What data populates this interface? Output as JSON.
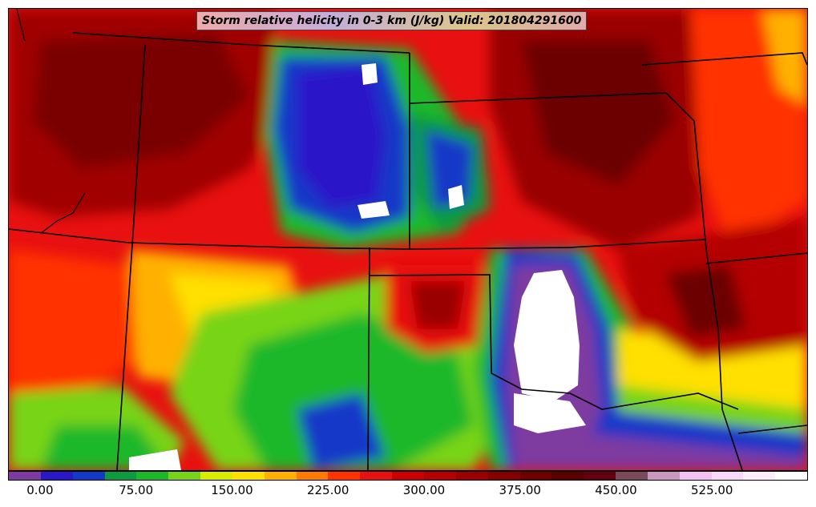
{
  "title": "Storm relative helicity in 0-3 km (J/kg) Valid: 201804291600",
  "colorbar": {
    "colors": [
      "#7e3aa0",
      "#2a18c8",
      "#1438c8",
      "#0e9a3e",
      "#1cb82a",
      "#78d418",
      "#d8ec00",
      "#ffe000",
      "#ffb000",
      "#ff7a00",
      "#ff3200",
      "#e81010",
      "#cc0000",
      "#b40000",
      "#9a0000",
      "#820000",
      "#6c0000",
      "#580000",
      "#600010",
      "#7a4a5a",
      "#c898c0",
      "#f4c0f0",
      "#f8d8f8",
      "#fcecfc",
      "#ffffff"
    ],
    "tick_labels": [
      "0.00",
      "75.00",
      "150.00",
      "225.00",
      "300.00",
      "375.00",
      "450.00",
      "525.00"
    ],
    "tick_values": [
      0,
      75,
      150,
      225,
      300,
      375,
      450,
      525
    ],
    "range": [
      -25,
      600
    ]
  },
  "map": {
    "field": "storm-relative-helicity-0-3km",
    "region": "central-united-states"
  }
}
